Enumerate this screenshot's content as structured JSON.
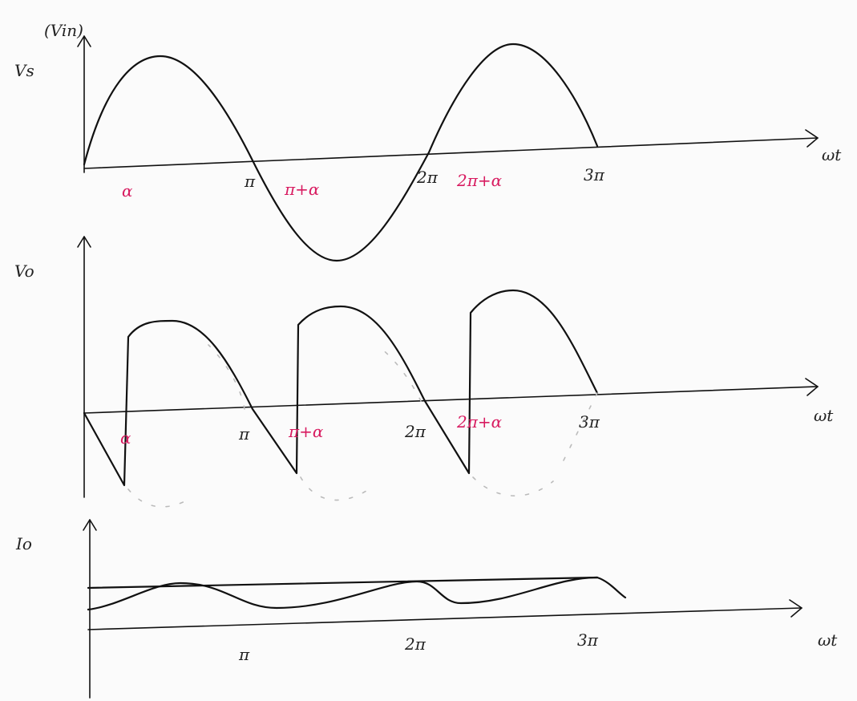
{
  "panels": [
    {
      "y_label_top": "(Vin)",
      "y_label": "Vs",
      "x_label": "ωt",
      "ticks": [
        "α",
        "π",
        "π+α",
        "2π",
        "2π+α",
        "3π"
      ]
    },
    {
      "y_label": "Vo",
      "x_label": "ωt",
      "ticks": [
        "α",
        "π",
        "π+α",
        "2π",
        "2π+α",
        "3π"
      ]
    },
    {
      "y_label": "Io",
      "x_label": "ωt",
      "ticks": [
        "π",
        "2π",
        "3π"
      ]
    }
  ]
}
